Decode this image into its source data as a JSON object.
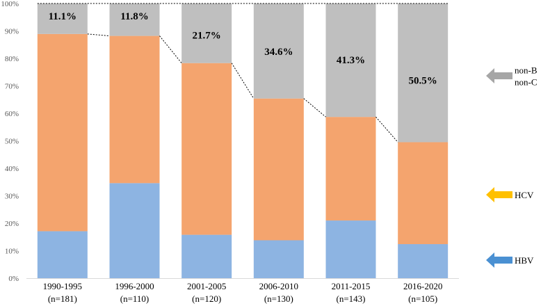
{
  "chart_data": {
    "type": "bar",
    "stacked": true,
    "normalized": true,
    "categories": [
      "1990-1995",
      "1996-2000",
      "2001-2005",
      "2006-2010",
      "2011-2015",
      "2016-2020"
    ],
    "category_counts": [
      "(n=181)",
      "(n=110)",
      "(n=120)",
      "(n=130)",
      "(n=143)",
      "(n=105)"
    ],
    "series": [
      {
        "name": "HBV",
        "color": "#8DB4E2",
        "values": [
          17.1,
          34.6,
          15.8,
          13.8,
          21.0,
          12.4
        ]
      },
      {
        "name": "HCV",
        "color": "#F4A46E",
        "values": [
          71.8,
          53.6,
          62.5,
          51.6,
          37.7,
          37.1
        ]
      },
      {
        "name": "non-B non-C",
        "color": "#BFBFBF",
        "values": [
          11.1,
          11.8,
          21.7,
          34.6,
          41.3,
          50.5
        ]
      }
    ],
    "data_labels": [
      "11.1%",
      "11.8%",
      "21.7%",
      "34.6%",
      "41.3%",
      "50.5%"
    ],
    "yticks": [
      "0%",
      "10%",
      "20%",
      "30%",
      "40%",
      "50%",
      "60%",
      "70%",
      "80%",
      "90%",
      "100%"
    ],
    "ylim": [
      0,
      100
    ],
    "legend": [
      {
        "label_lines": [
          "non-B",
          "non-C"
        ],
        "arrow_color": "#A6A6A6"
      },
      {
        "label_lines": [
          "HCV"
        ],
        "arrow_color": "#FFC000"
      },
      {
        "label_lines": [
          "HBV"
        ],
        "arrow_color": "#4A90D2"
      }
    ],
    "connector": "dotted line linking tops of non-B non-C segments",
    "legend_position": "right"
  }
}
